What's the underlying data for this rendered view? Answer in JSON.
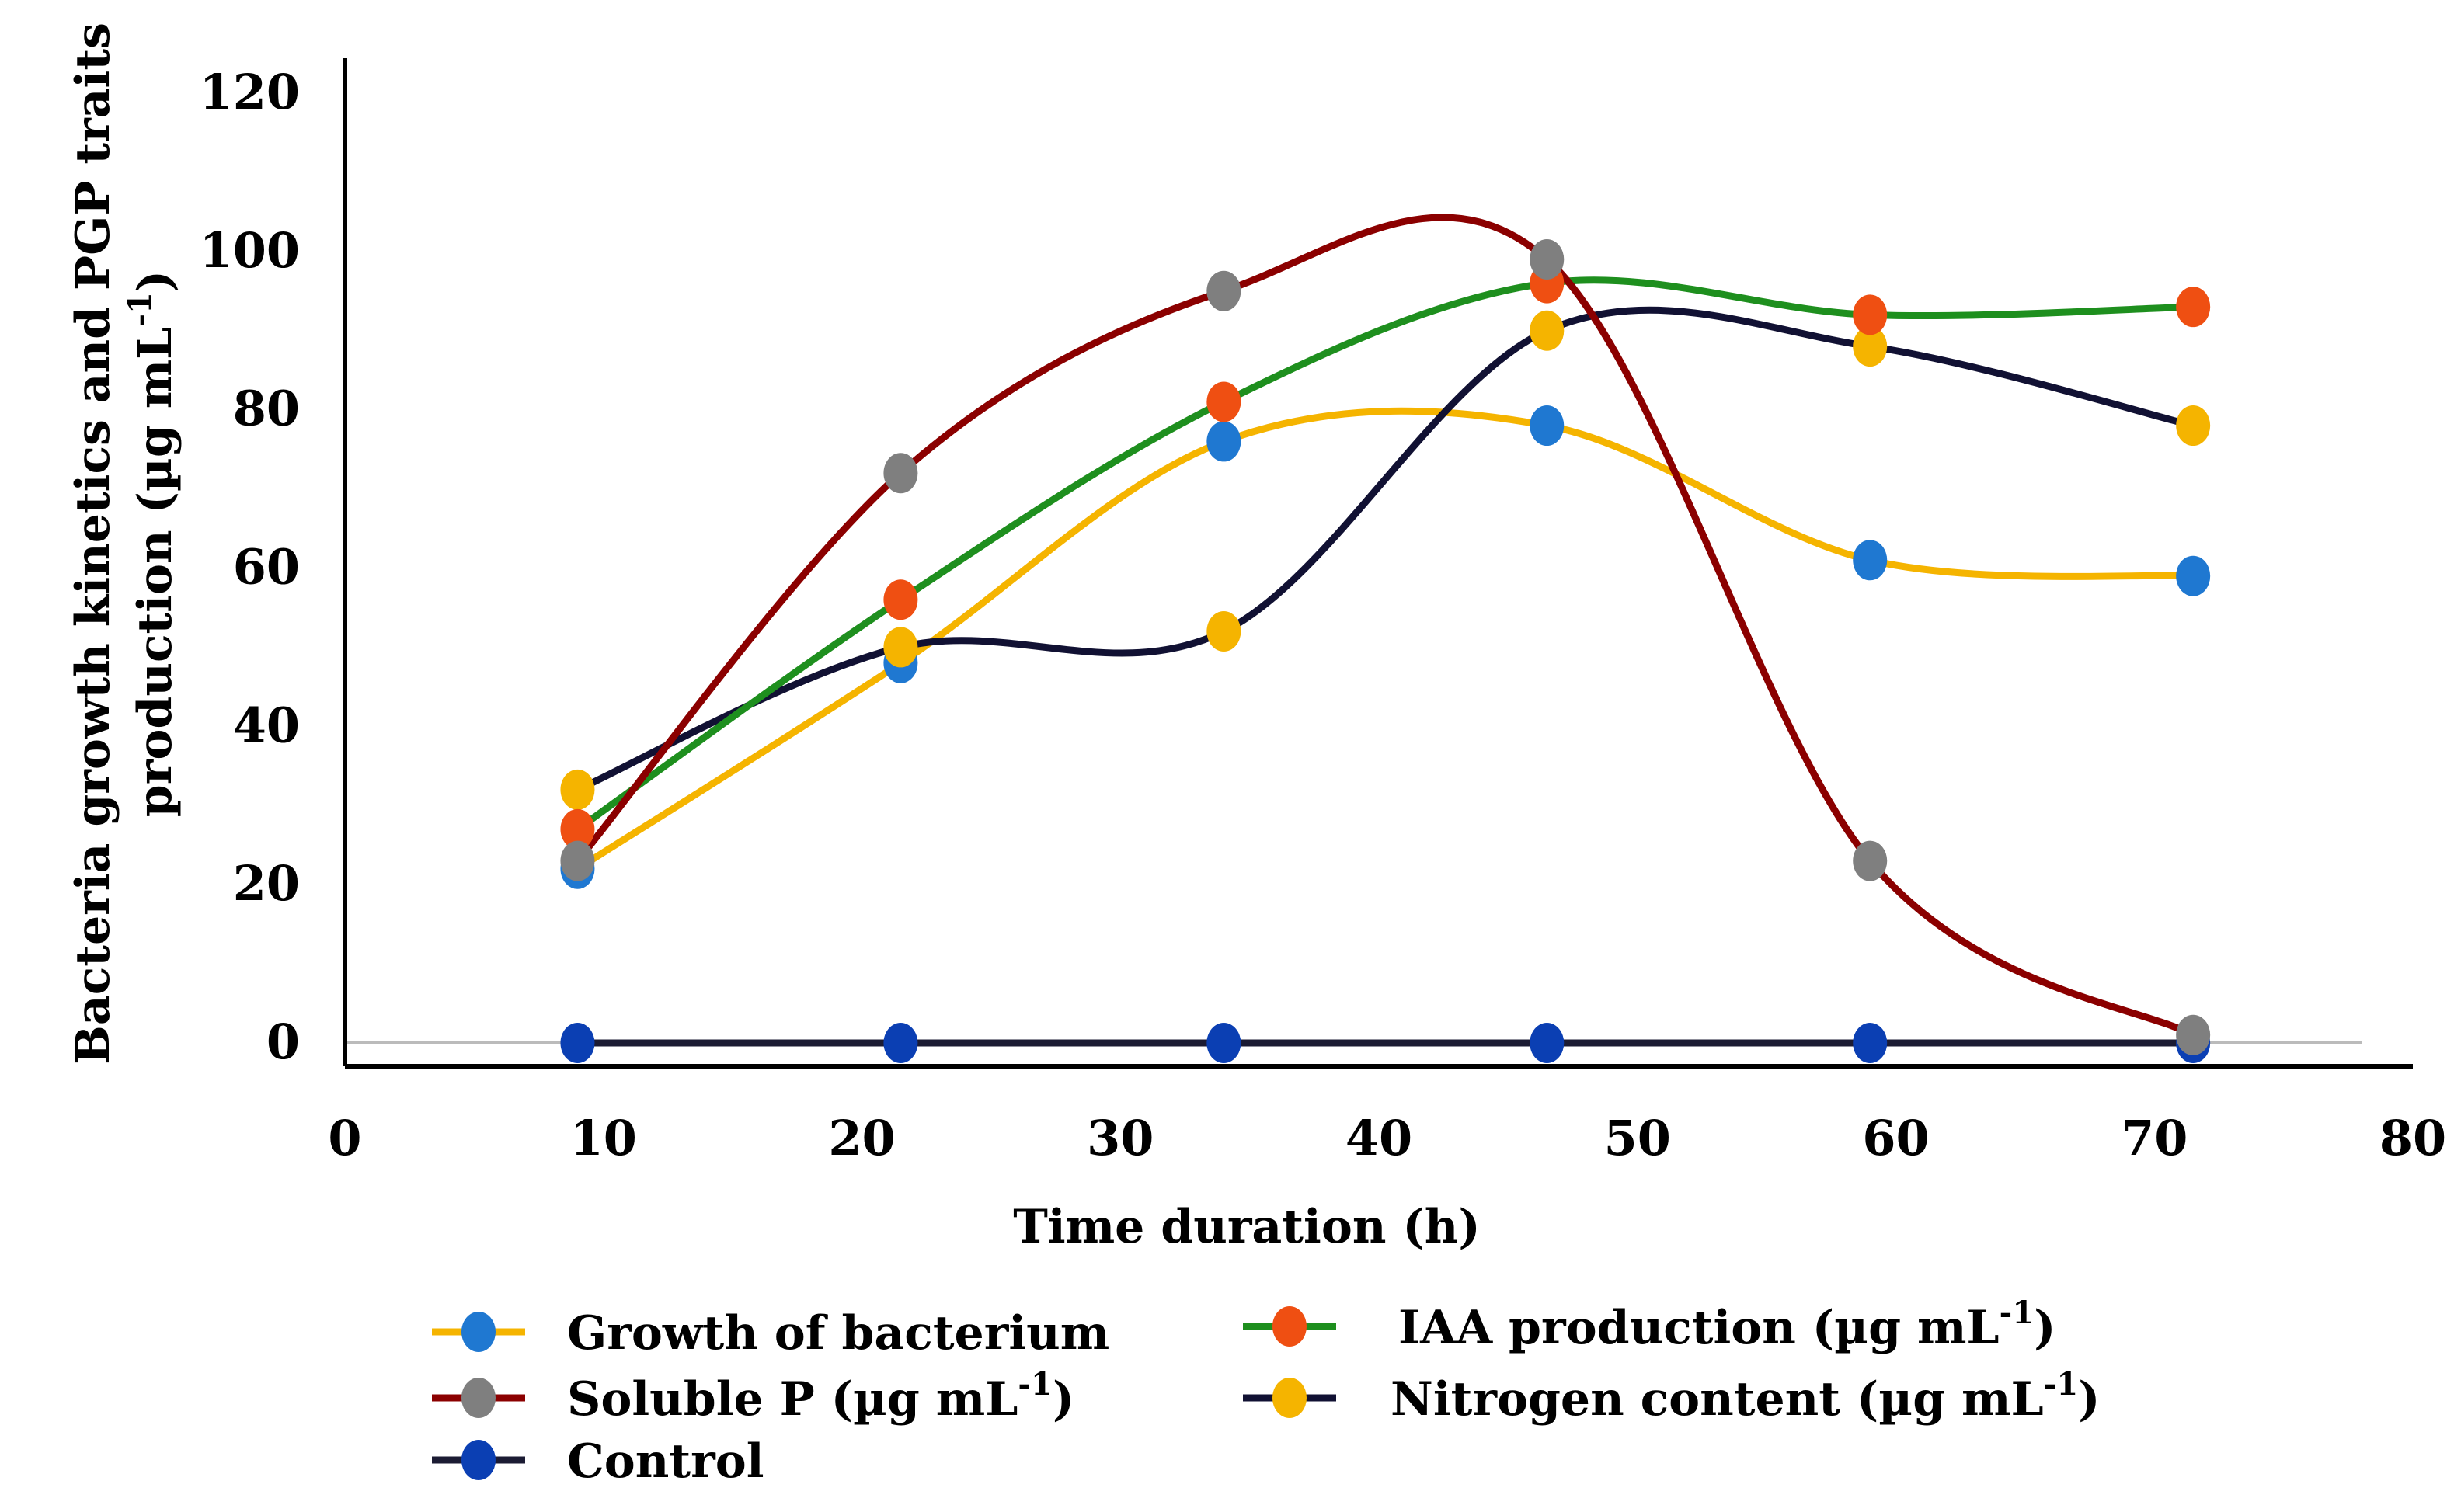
{
  "chart_data": {
    "type": "line",
    "xlabel": "Time duration (h)",
    "ylabel_line1": "Bacteria growth kinetics and PGP traits",
    "ylabel_line2": "production (µg mL",
    "ylabel_sup": "-1",
    "ylabel_close": ")",
    "xlim": [
      0,
      80
    ],
    "ylim": [
      0,
      120
    ],
    "xticks": [
      0,
      10,
      20,
      30,
      40,
      50,
      60,
      70,
      80
    ],
    "yticks": [
      0,
      20,
      40,
      60,
      80,
      100,
      120
    ],
    "x": [
      9,
      21.5,
      34,
      46.5,
      59,
      71.5
    ],
    "series": [
      {
        "name": "Growth of bacterium",
        "unit": "",
        "line_color": "#f5b400",
        "marker_color": "#1f78d1",
        "values": [
          22,
          48,
          76,
          78,
          61,
          59
        ]
      },
      {
        "name": "Soluble P",
        "unit": "(µg mL",
        "unit_sup": "-1",
        "unit_close": ")",
        "line_color": "#8b0000",
        "marker_color": "#7f7f7f",
        "values": [
          23,
          72,
          95,
          99,
          23,
          1
        ]
      },
      {
        "name": "Control",
        "unit": "",
        "line_color": "#1b1b33",
        "marker_color": "#0b3fb3",
        "values": [
          0,
          0,
          0,
          0,
          0,
          0
        ]
      },
      {
        "name": "IAA production",
        "unit": "(µg mL",
        "unit_sup": "-1",
        "unit_close": ")",
        "line_color": "#1e8f1e",
        "marker_color": "#ef4f12",
        "values": [
          27,
          56,
          81,
          96,
          92,
          93
        ]
      },
      {
        "name": "Nitrogen content",
        "unit": "(µg mL",
        "unit_sup": "-1",
        "unit_close": ")",
        "line_color": "#111133",
        "marker_color": "#f5b400",
        "values": [
          32,
          50,
          52,
          90,
          88,
          78
        ]
      }
    ]
  }
}
